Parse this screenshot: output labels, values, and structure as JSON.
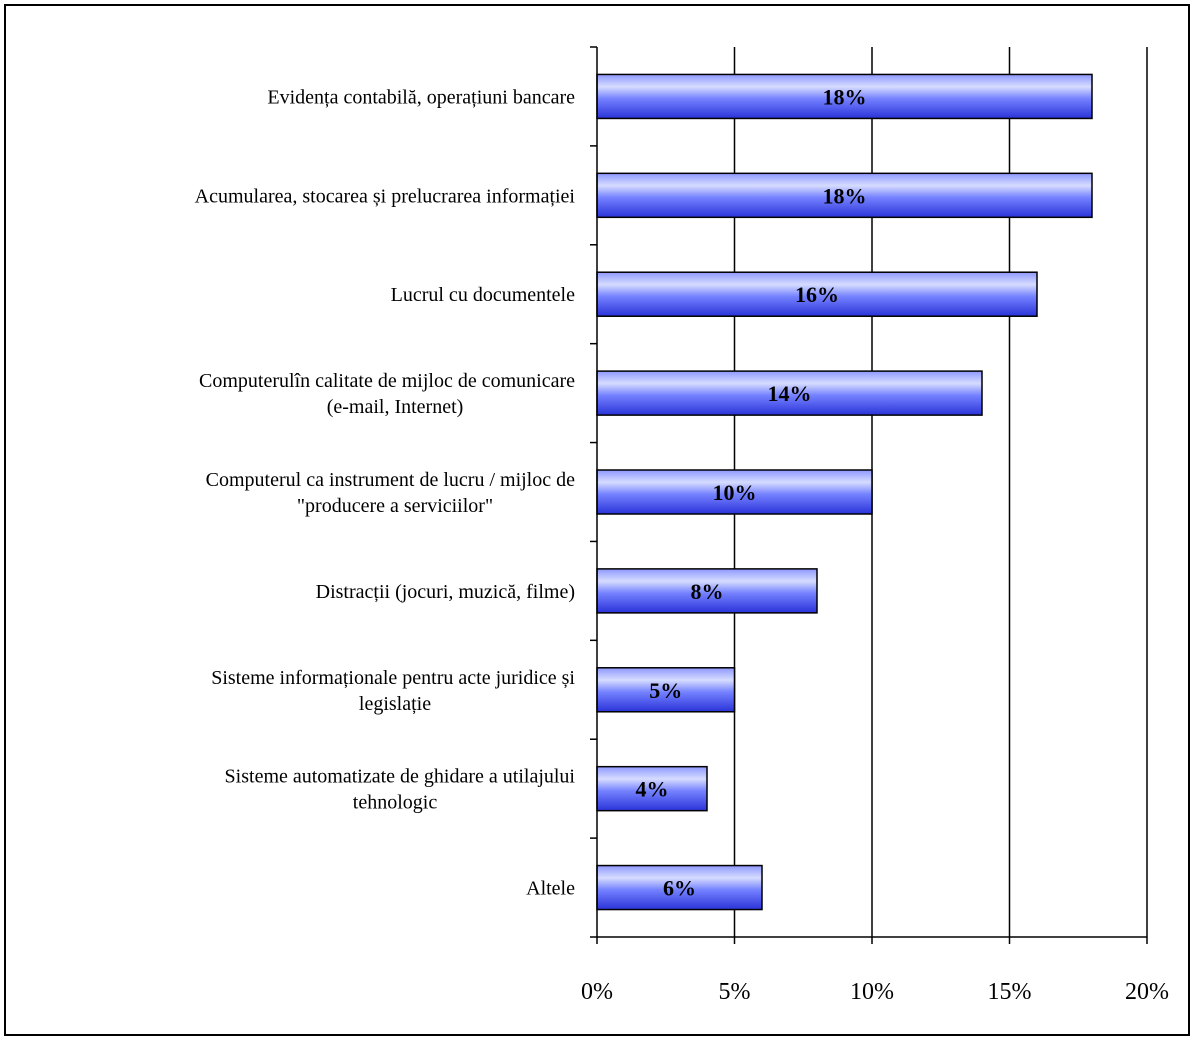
{
  "chart_data": {
    "type": "bar",
    "orientation": "horizontal",
    "categories": [
      [
        "Evidența contabilă, operațiuni bancare"
      ],
      [
        "Acumularea, stocarea și prelucrarea informației"
      ],
      [
        "Lucrul cu documentele"
      ],
      [
        "Computerulîn calitate de mijloc de comunicare",
        "(e-mail, Internet)"
      ],
      [
        "Computerul ca instrument de lucru / mijloc de",
        "\"producere a serviciilor\""
      ],
      [
        "Distracții (jocuri, muzică, filme)"
      ],
      [
        "Sisteme informaționale pentru acte juridice și",
        "legislație"
      ],
      [
        "Sisteme automatizate de ghidare a utilajului",
        "tehnologic"
      ],
      [
        "Altele"
      ]
    ],
    "values": [
      18,
      18,
      16,
      14,
      10,
      8,
      5,
      4,
      6
    ],
    "data_labels": [
      "18%",
      "18%",
      "16%",
      "14%",
      "10%",
      "8%",
      "5%",
      "4%",
      "6%"
    ],
    "xlim": [
      0,
      20
    ],
    "xticks": [
      0,
      5,
      10,
      15,
      20
    ],
    "xtick_labels": [
      "0%",
      "5%",
      "10%",
      "15%",
      "20%"
    ],
    "grid": true,
    "bar_color": "#3f4cf0",
    "bar_highlight": "#d6dcff"
  }
}
